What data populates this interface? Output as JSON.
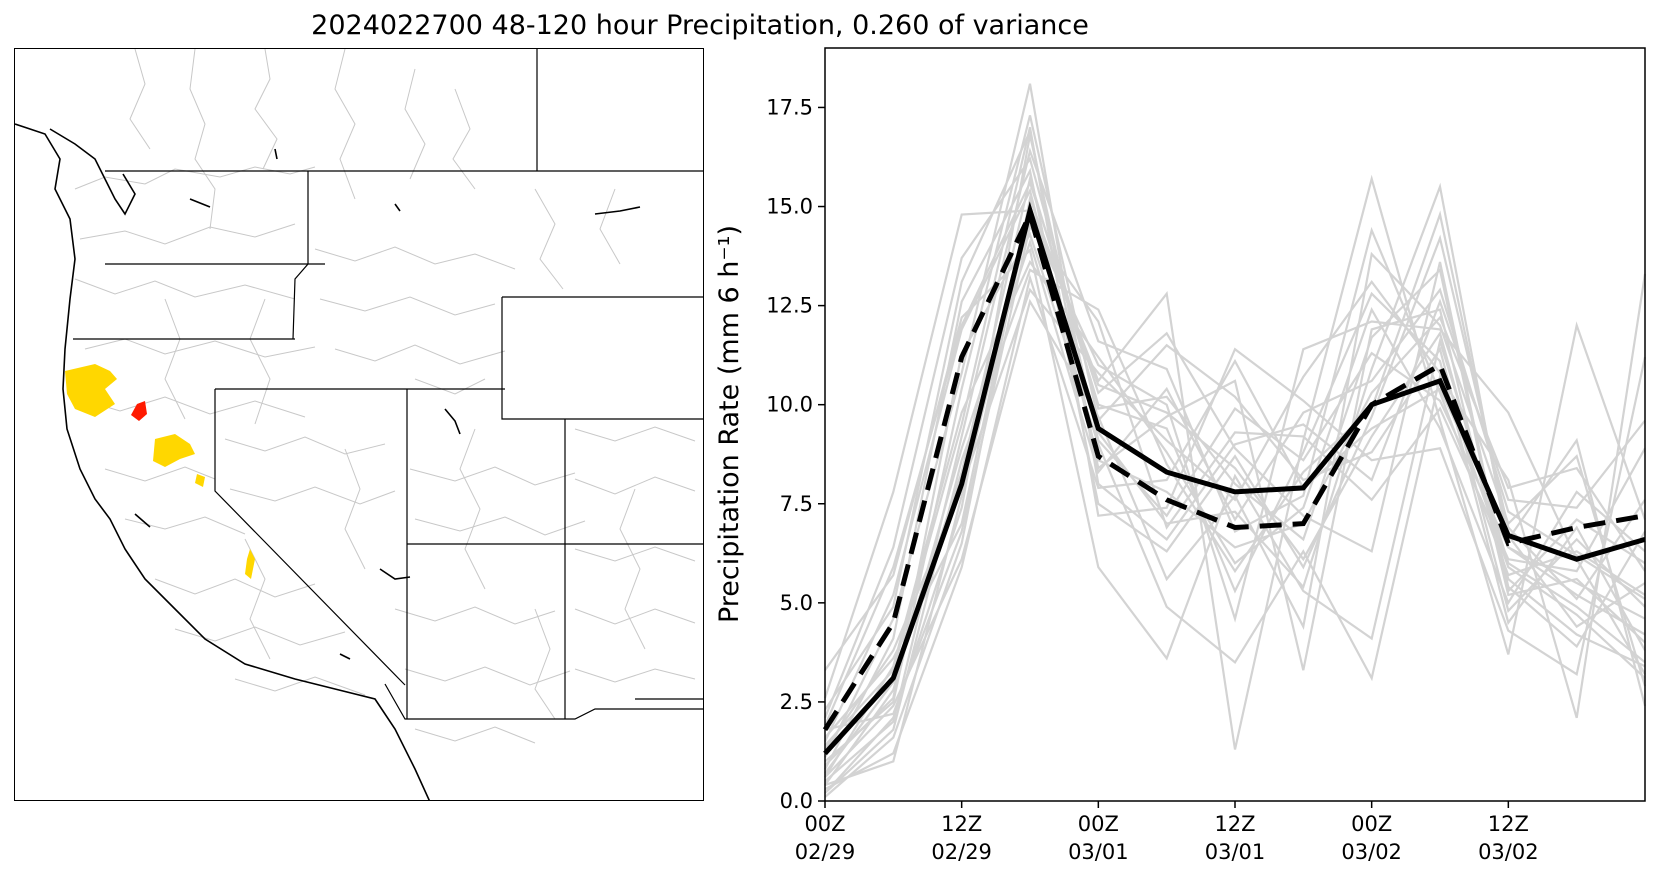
{
  "figure": {
    "title": "2024022700 48-120 hour Precipitation, 0.260 of variance"
  },
  "map": {
    "highlight_colors": {
      "primary": "#ffd700",
      "secondary": "#ff1a00"
    },
    "basin_line_color": "#c8c8c8",
    "boundary_color": "#000000"
  },
  "chart_data": {
    "type": "line",
    "ylabel": "Precipitation Rate (mm 6 h⁻¹)",
    "ylim": [
      0,
      19
    ],
    "yticks": [
      "0.0",
      "2.5",
      "5.0",
      "7.5",
      "10.0",
      "12.5",
      "15.0",
      "17.5"
    ],
    "xticks": [
      {
        "x": 0,
        "line1": "00Z",
        "line2": "02/29"
      },
      {
        "x": 2,
        "line1": "12Z",
        "line2": "02/29"
      },
      {
        "x": 4,
        "line1": "00Z",
        "line2": "03/01"
      },
      {
        "x": 6,
        "line1": "12Z",
        "line2": "03/01"
      },
      {
        "x": 8,
        "line1": "00Z",
        "line2": "03/02"
      },
      {
        "x": 10,
        "line1": "12Z",
        "line2": "03/02"
      }
    ],
    "x": [
      0,
      1,
      2,
      3,
      4,
      5,
      6,
      7,
      8,
      9,
      10,
      11,
      12
    ],
    "xlim": [
      0,
      12
    ],
    "grid": false,
    "series": [
      {
        "style": "solid",
        "color": "#000000",
        "values": [
          1.2,
          3.1,
          8.0,
          14.9,
          9.4,
          8.3,
          7.8,
          7.9,
          10.0,
          10.6,
          6.7,
          6.1,
          6.6
        ]
      },
      {
        "style": "dashed",
        "color": "#000000",
        "values": [
          1.8,
          4.5,
          11.2,
          14.8,
          8.7,
          7.6,
          6.9,
          7.0,
          10.0,
          11.0,
          6.5,
          6.9,
          7.2
        ]
      }
    ],
    "ensemble_color": "#d3d3d3",
    "ensemble": [
      [
        0.1,
        1.6,
        6.5,
        15.2,
        10.5,
        9.8,
        8.4,
        6.1,
        9.2,
        11.8,
        5.6,
        4.2,
        3.4
      ],
      [
        0.2,
        2.1,
        7.4,
        16.8,
        9.1,
        7.2,
        9.9,
        8.6,
        11.3,
        10.1,
        6.4,
        5.5,
        4.6
      ],
      [
        0.4,
        2.8,
        8.9,
        14.1,
        8.3,
        10.4,
        7.1,
        9.8,
        10.6,
        12.9,
        7.3,
        6.2,
        5.1
      ],
      [
        0.6,
        3.4,
        9.8,
        13.6,
        11.2,
        8.8,
        6.0,
        7.4,
        12.4,
        9.4,
        5.0,
        7.8,
        6.3
      ],
      [
        0.8,
        4.1,
        12.6,
        15.9,
        7.5,
        6.3,
        8.7,
        5.9,
        9.7,
        14.2,
        6.9,
        5.1,
        7.6
      ],
      [
        1.0,
        2.5,
        10.4,
        17.3,
        9.6,
        11.5,
        10.2,
        8.1,
        8.8,
        11.4,
        4.8,
        6.6,
        4.9
      ],
      [
        1.3,
        3.8,
        7.9,
        12.9,
        10.8,
        9.1,
        7.6,
        10.7,
        13.1,
        10.8,
        5.9,
        4.7,
        3.1
      ],
      [
        1.5,
        5.2,
        11.9,
        15.4,
        8.6,
        7.8,
        6.4,
        7.0,
        10.3,
        12.2,
        7.9,
        8.4,
        5.8
      ],
      [
        1.8,
        2.2,
        6.8,
        14.5,
        12.1,
        6.9,
        9.3,
        9.2,
        7.6,
        9.9,
        6.1,
        5.8,
        8.9
      ],
      [
        2.1,
        6.4,
        13.7,
        16.2,
        9.9,
        10.2,
        8.0,
        6.6,
        11.7,
        13.4,
        5.3,
        7.1,
        6.0
      ],
      [
        0.3,
        1.2,
        5.9,
        13.2,
        7.9,
        8.1,
        11.1,
        7.9,
        9.4,
        10.4,
        6.7,
        4.4,
        5.5
      ],
      [
        0.7,
        3.0,
        8.3,
        15.7,
        10.0,
        9.4,
        5.3,
        8.8,
        12.8,
        11.1,
        4.5,
        6.9,
        3.8
      ],
      [
        2.6,
        7.8,
        14.8,
        14.9,
        9.3,
        7.0,
        7.3,
        5.4,
        10.9,
        15.5,
        6.4,
        5.2,
        4.2
      ],
      [
        1.1,
        4.6,
        10.8,
        18.1,
        8.0,
        6.6,
        9.0,
        9.5,
        8.1,
        12.6,
        7.6,
        7.4,
        9.6
      ],
      [
        0.5,
        2.0,
        9.2,
        16.4,
        11.6,
        10.9,
        6.8,
        7.7,
        14.4,
        10.3,
        5.7,
        6.3,
        5.2
      ],
      [
        3.3,
        5.7,
        12.2,
        13.9,
        5.9,
        3.6,
        8.2,
        5.3,
        4.1,
        11.6,
        6.0,
        4.9,
        3.5
      ],
      [
        1.6,
        3.6,
        7.0,
        15.0,
        10.6,
        12.8,
        1.3,
        9.1,
        15.7,
        9.6,
        3.7,
        12.0,
        7.1
      ],
      [
        0.9,
        2.6,
        11.3,
        14.3,
        9.0,
        4.9,
        3.5,
        6.3,
        3.1,
        10.7,
        8.1,
        2.1,
        13.3
      ],
      [
        2.3,
        4.9,
        13.1,
        16.9,
        8.4,
        9.7,
        10.6,
        3.3,
        11.9,
        12.4,
        5.2,
        5.6,
        4.0
      ],
      [
        0.2,
        1.8,
        8.6,
        13.4,
        12.4,
        8.5,
        5.8,
        8.3,
        9.9,
        14.8,
        6.6,
        9.1,
        2.4
      ],
      [
        1.4,
        3.3,
        9.5,
        17.0,
        7.2,
        7.4,
        11.4,
        10.1,
        8.6,
        8.9,
        4.3,
        3.2,
        11.2
      ],
      [
        0.6,
        2.4,
        6.1,
        12.6,
        9.7,
        5.6,
        7.7,
        4.4,
        13.8,
        12.0,
        7.0,
        8.7,
        2.9
      ],
      [
        1.9,
        5.9,
        12.0,
        15.6,
        10.3,
        11.8,
        8.9,
        7.2,
        6.3,
        13.6,
        5.4,
        3.9,
        6.8
      ],
      [
        0.4,
        1.0,
        7.7,
        14.7,
        11.0,
        10.0,
        4.6,
        11.4,
        12.1,
        11.9,
        9.8,
        6.1,
        3.2
      ]
    ]
  }
}
